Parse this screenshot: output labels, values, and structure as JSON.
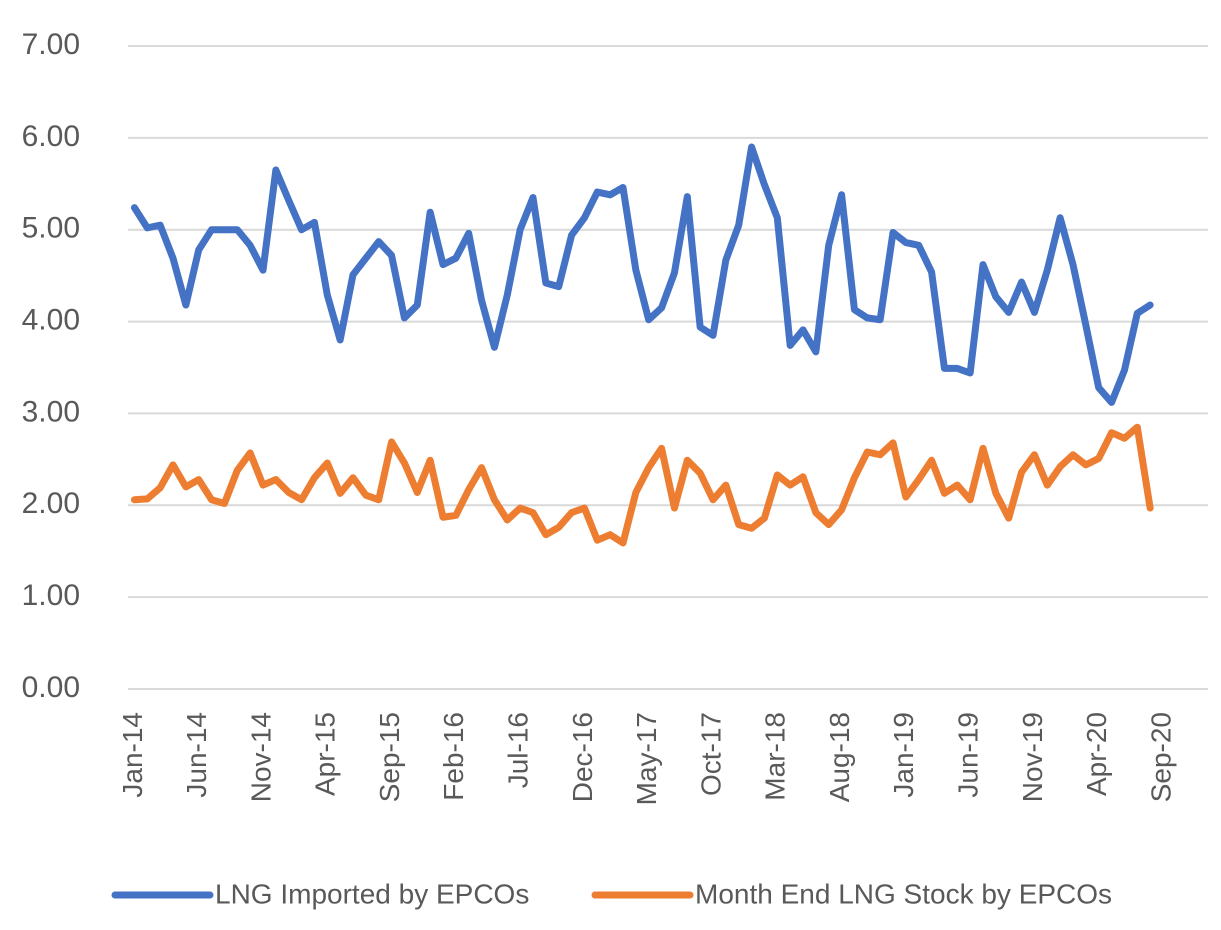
{
  "chart_data": {
    "type": "line",
    "categories": [
      "Jan-14",
      null,
      null,
      null,
      null,
      "Jun-14",
      null,
      null,
      null,
      null,
      "Nov-14",
      null,
      null,
      null,
      null,
      "Apr-15",
      null,
      null,
      null,
      null,
      "Sep-15",
      null,
      null,
      null,
      null,
      "Feb-16",
      null,
      null,
      null,
      null,
      "Jul-16",
      null,
      null,
      null,
      null,
      "Dec-16",
      null,
      null,
      null,
      null,
      "May-17",
      null,
      null,
      null,
      null,
      "Oct-17",
      null,
      null,
      null,
      null,
      "Mar-18",
      null,
      null,
      null,
      null,
      "Aug-18",
      null,
      null,
      null,
      null,
      "Jan-19",
      null,
      null,
      null,
      null,
      "Jun-19",
      null,
      null,
      null,
      null,
      "Nov-19",
      null,
      null,
      null,
      null,
      "Apr-20",
      null,
      null,
      null,
      null,
      "Sep-20",
      null,
      null,
      null
    ],
    "series": [
      {
        "name": "LNG Imported by EPCOs",
        "color": "#4472c4",
        "values": [
          5.24,
          5.02,
          5.05,
          4.69,
          4.18,
          4.78,
          5.0,
          5.0,
          5.0,
          4.83,
          4.56,
          5.65,
          5.32,
          5.0,
          5.08,
          4.29,
          3.8,
          4.51,
          4.69,
          4.87,
          4.72,
          4.04,
          4.18,
          5.19,
          4.62,
          4.69,
          4.96,
          4.23,
          3.72,
          4.29,
          5.0,
          5.35,
          4.42,
          4.38,
          4.94,
          5.13,
          5.41,
          5.38,
          5.46,
          4.56,
          4.02,
          4.15,
          4.53,
          5.36,
          3.94,
          3.85,
          4.67,
          5.05,
          5.9,
          5.49,
          5.13,
          3.74,
          3.91,
          3.67,
          4.83,
          5.38,
          4.13,
          4.04,
          4.02,
          4.97,
          4.86,
          4.83,
          4.54,
          3.49,
          3.49,
          3.44,
          4.62,
          4.27,
          4.1,
          4.43,
          4.1,
          4.56,
          5.13,
          4.62,
          3.96,
          3.28,
          3.12,
          3.47,
          4.09,
          4.18,
          null,
          null,
          null,
          null
        ]
      },
      {
        "name": "Month End LNG Stock by EPCOs",
        "color": "#ed7d31",
        "values": [
          2.06,
          2.07,
          2.19,
          2.44,
          2.2,
          2.28,
          2.06,
          2.02,
          2.38,
          2.57,
          2.22,
          2.28,
          2.14,
          2.06,
          2.3,
          2.46,
          2.13,
          2.3,
          2.11,
          2.06,
          2.69,
          2.46,
          2.14,
          2.49,
          1.87,
          1.89,
          2.17,
          2.41,
          2.06,
          1.84,
          1.97,
          1.92,
          1.68,
          1.76,
          1.92,
          1.97,
          1.62,
          1.68,
          1.59,
          2.14,
          2.41,
          2.62,
          1.97,
          2.49,
          2.35,
          2.06,
          2.22,
          1.79,
          1.75,
          1.86,
          2.33,
          2.22,
          2.31,
          1.92,
          1.79,
          1.95,
          2.3,
          2.58,
          2.55,
          2.68,
          2.09,
          2.28,
          2.49,
          2.13,
          2.22,
          2.06,
          2.62,
          2.13,
          1.86,
          2.36,
          2.55,
          2.22,
          2.42,
          2.55,
          2.44,
          2.51,
          2.79,
          2.73,
          2.85,
          1.97,
          null,
          null,
          null,
          null
        ]
      }
    ],
    "ylim": [
      0,
      7
    ],
    "yticks": [
      {
        "value": 0,
        "label": "0.00"
      },
      {
        "value": 1,
        "label": "1.00"
      },
      {
        "value": 2,
        "label": "2.00"
      },
      {
        "value": 3,
        "label": "3.00"
      },
      {
        "value": 4,
        "label": "4.00"
      },
      {
        "value": 5,
        "label": "5.00"
      },
      {
        "value": 6,
        "label": "6.00"
      },
      {
        "value": 7,
        "label": "7.00"
      }
    ],
    "grid": true,
    "legend": "bottom"
  }
}
